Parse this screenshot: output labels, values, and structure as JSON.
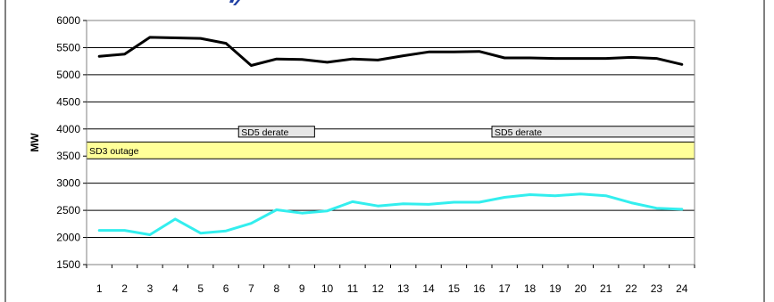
{
  "chart_data": {
    "type": "line",
    "xlabel": "",
    "ylabel": "MW",
    "ylim": [
      1500,
      6000
    ],
    "yticks": [
      1500,
      2000,
      2500,
      3000,
      3500,
      4000,
      4500,
      5000,
      5500,
      6000
    ],
    "x": [
      1,
      2,
      3,
      4,
      5,
      6,
      7,
      8,
      9,
      10,
      11,
      12,
      13,
      14,
      15,
      16,
      17,
      18,
      19,
      20,
      21,
      22,
      23,
      24
    ],
    "grid": "horizontal",
    "series": [
      {
        "color": "#000000",
        "values": [
          5340,
          5380,
          5690,
          5680,
          5670,
          5580,
          5170,
          5290,
          5280,
          5230,
          5290,
          5270,
          5350,
          5420,
          5420,
          5430,
          5310,
          5310,
          5300,
          5300,
          5300,
          5320,
          5300,
          5190
        ]
      },
      {
        "color": "#33eeee",
        "values": [
          2130,
          2130,
          2050,
          2340,
          2080,
          2120,
          2260,
          2510,
          2450,
          2490,
          2660,
          2580,
          2620,
          2610,
          2650,
          2650,
          2740,
          2790,
          2770,
          2800,
          2770,
          2640,
          2540,
          2520
        ]
      }
    ],
    "annotations": [
      {
        "label": "SD5 derate",
        "x_start": 6.5,
        "x_end": 9.5,
        "y_low": 3850,
        "y_high": 4050,
        "color": "#e6e6e6"
      },
      {
        "label": "SD5 derate",
        "x_start": 16.5,
        "x_end": 24.5,
        "y_low": 3850,
        "y_high": 4050,
        "color": "#e6e6e6"
      },
      {
        "label": "SD3 outage",
        "x_start": 0.5,
        "x_end": 24.5,
        "y_low": 3450,
        "y_high": 3760,
        "color": "#ffff99"
      }
    ]
  }
}
